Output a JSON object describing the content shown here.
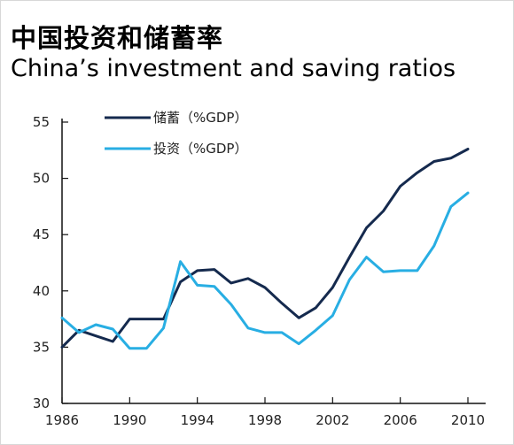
{
  "title_cn": "中国投资和储蓄率",
  "title_en": "China’s investment and saving ratios",
  "colors": {
    "savings": "#152a4e",
    "investment": "#28aee3",
    "axis": "#111111"
  },
  "chart_data": {
    "type": "line",
    "title": "China’s investment and saving ratios",
    "xlabel": "",
    "ylabel": "",
    "ylim": [
      30,
      55
    ],
    "xlim": [
      1986,
      2010
    ],
    "yticks": [
      "30",
      "35",
      "40",
      "45",
      "50",
      "55"
    ],
    "xticks": [
      "1986",
      "1990",
      "1994",
      "1998",
      "2002",
      "2006",
      "2010"
    ],
    "grid": false,
    "legend_position": "top-left",
    "series": [
      {
        "name": "储蓄（%GDP）",
        "color": "#152a4e",
        "x": [
          1986,
          1987,
          1988,
          1989,
          1990,
          1991,
          1992,
          1993,
          1994,
          1995,
          1996,
          1997,
          1998,
          1999,
          2000,
          2001,
          2002,
          2003,
          2004,
          2005,
          2006,
          2007,
          2008,
          2009,
          2010
        ],
        "values": [
          35.0,
          36.5,
          36.0,
          35.5,
          37.5,
          37.5,
          37.5,
          40.8,
          41.8,
          41.9,
          40.7,
          41.1,
          40.3,
          38.9,
          37.6,
          38.5,
          40.3,
          43.0,
          45.6,
          47.1,
          49.3,
          50.5,
          51.5,
          51.8,
          52.6
        ]
      },
      {
        "name": "投资（%GDP）",
        "color": "#28aee3",
        "x": [
          1986,
          1987,
          1988,
          1989,
          1990,
          1991,
          1992,
          1993,
          1994,
          1995,
          1996,
          1997,
          1998,
          1999,
          2000,
          2001,
          2002,
          2003,
          2004,
          2005,
          2006,
          2007,
          2008,
          2009,
          2010
        ],
        "values": [
          37.6,
          36.3,
          37.0,
          36.6,
          34.9,
          34.9,
          36.7,
          42.6,
          40.5,
          40.4,
          38.8,
          36.7,
          36.3,
          36.3,
          35.3,
          36.5,
          37.8,
          41.0,
          43.0,
          41.7,
          41.8,
          41.8,
          44.0,
          47.5,
          48.7
        ]
      }
    ]
  }
}
